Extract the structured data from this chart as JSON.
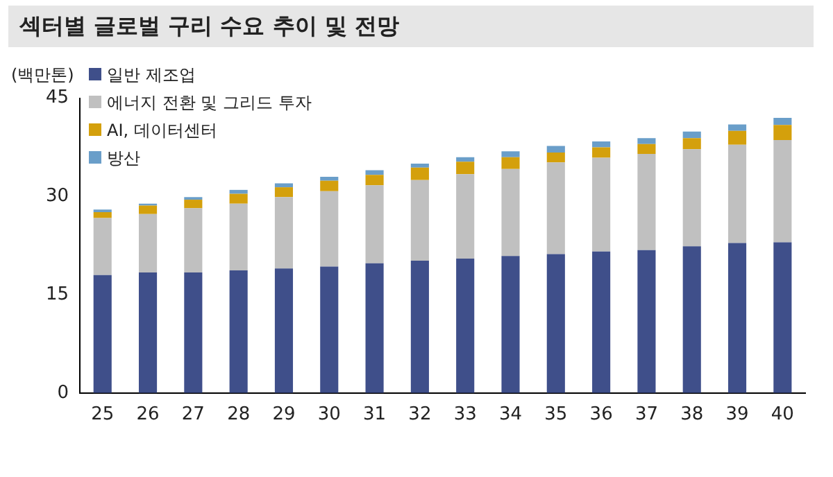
{
  "chart_data": {
    "type": "bar",
    "title": "섹터별 글로벌 구리 수요 추이 및 전망",
    "ylabel": "(백만톤)",
    "stacked": true,
    "legend": "top left",
    "grid": false,
    "categories": [
      "25",
      "26",
      "27",
      "28",
      "29",
      "30",
      "31",
      "32",
      "33",
      "34",
      "35",
      "36",
      "37",
      "38",
      "39",
      "40"
    ],
    "ylim": [
      0,
      45
    ],
    "yticks": [
      0,
      15,
      30,
      45
    ],
    "series": [
      {
        "name": "일반 제조업",
        "color": "#3f4f8a",
        "values": [
          18,
          18.4,
          18.4,
          18.7,
          19,
          19.3,
          19.8,
          20.2,
          20.5,
          20.9,
          21.2,
          21.6,
          21.8,
          22.4,
          22.9,
          23
        ]
      },
      {
        "name": "에너지 전환 및 그리드 투자",
        "color": "#c0c0c0",
        "values": [
          8.7,
          8.9,
          9.8,
          10.2,
          10.9,
          11.5,
          11.9,
          12.3,
          12.9,
          13.3,
          14,
          14.3,
          14.7,
          14.8,
          15,
          15.6
        ]
      },
      {
        "name": "AI, 데이터센터",
        "color": "#d4a00c",
        "values": [
          0.9,
          1.3,
          1.3,
          1.5,
          1.5,
          1.6,
          1.6,
          1.9,
          1.9,
          1.8,
          1.5,
          1.6,
          1.5,
          1.7,
          2.1,
          2.3
        ]
      },
      {
        "name": "방산",
        "color": "#6a9ec9",
        "values": [
          0.4,
          0.3,
          0.4,
          0.6,
          0.6,
          0.6,
          0.7,
          0.6,
          0.7,
          0.9,
          1,
          0.9,
          0.9,
          1,
          1,
          1.1
        ]
      }
    ]
  }
}
